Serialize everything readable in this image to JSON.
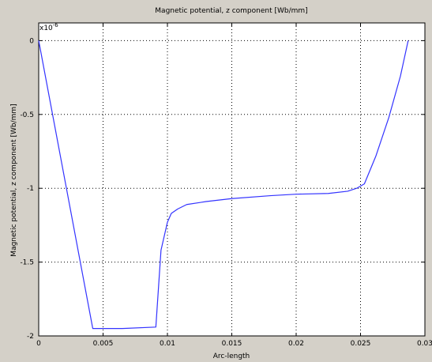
{
  "chart_data": {
    "type": "line",
    "title": "Magnetic potential, z component [Wb/mm]",
    "xlabel": "Arc-length",
    "ylabel": "Magnetic potential, z component [Wb/mm]",
    "y_exponent_base": "x10",
    "y_exponent_power": "-6",
    "xlim": [
      0,
      0.03
    ],
    "ylim": [
      -2,
      0.12
    ],
    "x_ticks": [
      0,
      0.005,
      0.01,
      0.015,
      0.02,
      0.025,
      0.03
    ],
    "x_tick_labels": [
      "0",
      "0.005",
      "0.01",
      "0.015",
      "0.02",
      "0.025",
      "0.03"
    ],
    "y_ticks": [
      0,
      -0.5,
      -1,
      -1.5,
      -2
    ],
    "y_tick_labels": [
      "0",
      "-0.5",
      "-1",
      "-1.5",
      "-2"
    ],
    "grid": true,
    "colors": {
      "line": "#3333ff",
      "background": "#d4d0c8",
      "plot_area": "#ffffff"
    },
    "series": [
      {
        "x": [
          0,
          0.0042,
          0.0065,
          0.0091,
          0.0095,
          0.01,
          0.0103,
          0.0108,
          0.0115,
          0.013,
          0.015,
          0.018,
          0.02,
          0.0225,
          0.024,
          0.0247,
          0.0253,
          0.0262,
          0.0272,
          0.0281,
          0.0287
        ],
        "y": [
          0,
          -1.95,
          -1.95,
          -1.94,
          -1.42,
          -1.23,
          -1.17,
          -1.14,
          -1.11,
          -1.09,
          -1.07,
          -1.05,
          -1.04,
          -1.035,
          -1.02,
          -1.0,
          -0.97,
          -0.78,
          -0.52,
          -0.24,
          0
        ]
      }
    ]
  }
}
